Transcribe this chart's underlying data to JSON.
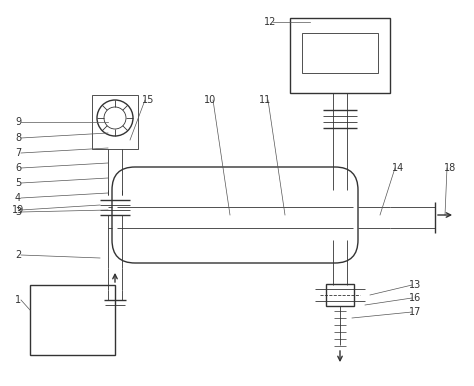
{
  "bg_color": "#ffffff",
  "line_color": "#333333",
  "label_color": "#333333",
  "lw_thin": 0.6,
  "lw_med": 1.0,
  "lw_thick": 1.5,
  "figsize": [
    4.74,
    3.86
  ],
  "dpi": 100
}
